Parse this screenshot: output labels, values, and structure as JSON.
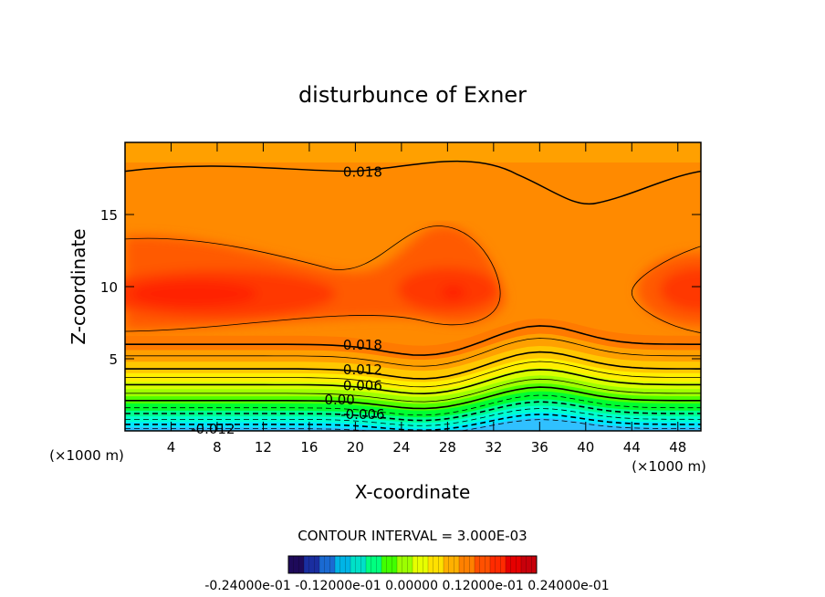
{
  "chart_data": {
    "type": "heatmap",
    "title": "disturbunce of Exner",
    "xlabel": "X-coordinate",
    "ylabel": "Z-coordinate",
    "x_unit_left": "(×1000 m)",
    "x_unit_right": "(×1000 m)",
    "xlim": [
      0,
      50
    ],
    "ylim": [
      0,
      20
    ],
    "x_ticks": [
      4,
      8,
      12,
      16,
      20,
      24,
      28,
      32,
      36,
      40,
      44,
      48
    ],
    "y_ticks": [
      5,
      10,
      15
    ],
    "contour_interval_text": "CONTOUR INTERVAL = 3.000E-03",
    "contour_labels": [
      {
        "text": "0.018",
        "x": 20,
        "z": 18.0
      },
      {
        "text": "0.018",
        "x": 20,
        "z": 6.0
      },
      {
        "text": "0.012",
        "x": 20,
        "z": 4.3
      },
      {
        "text": "0.006",
        "x": 20,
        "z": 3.2
      },
      {
        "text": "0.00",
        "x": 18,
        "z": 2.2
      },
      {
        "text": "-0.006",
        "x": 20,
        "z": 1.2
      },
      {
        "text": "-0.012",
        "x": 7,
        "z": 0.2
      }
    ],
    "colorbar": {
      "min": -0.024,
      "max": 0.024,
      "labels": "-0.24000e-01 -0.12000e-01 0.00000 0.12000e-01 0.24000e-01",
      "colors": [
        "#1e0a5a",
        "#1a2ea0",
        "#1a6ad2",
        "#00b4e6",
        "#00e0c8",
        "#00ff80",
        "#40ff00",
        "#9cff00",
        "#e6ff00",
        "#ffe000",
        "#ffb000",
        "#ff8000",
        "#ff5000",
        "#ff2a00",
        "#e60000",
        "#c8000a"
      ]
    },
    "field_colors": {
      "peak": "#ff2000",
      "high": "#ff3800",
      "mid_high": "#ff5a00",
      "top": "#ff8a00",
      "top_edge": "#ffa000",
      "levels_low": [
        "#ff7a00",
        "#ffa000",
        "#ffc800",
        "#ffef00",
        "#d8ff00",
        "#a0ff00",
        "#50ff00",
        "#00ff30",
        "#00ff90",
        "#00ffd0",
        "#00e8ff",
        "#30c0ff"
      ]
    }
  }
}
